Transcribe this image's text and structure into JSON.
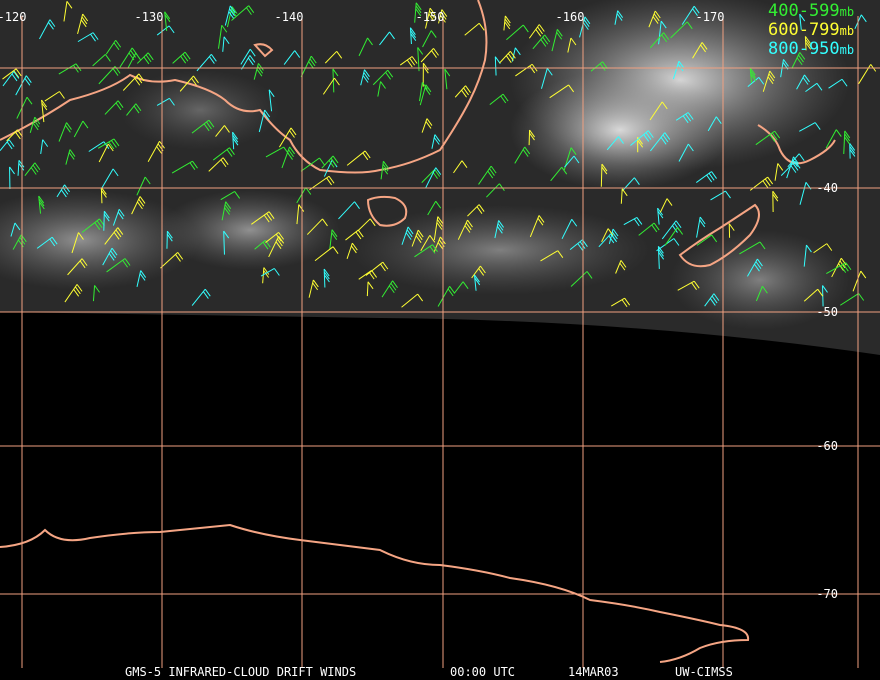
{
  "header": {
    "longitude_labels": [
      "-120",
      "-130",
      "-140",
      "-150",
      "-160",
      "-170"
    ]
  },
  "latitude_labels": [
    "-40",
    "-50",
    "-60",
    "-70"
  ],
  "legend": [
    {
      "range": "400-599",
      "unit": "mb",
      "color": "#33ee33"
    },
    {
      "range": "600-799",
      "unit": "mb",
      "color": "#ffff33"
    },
    {
      "range": "800-950",
      "unit": "mb",
      "color": "#33ffff"
    }
  ],
  "footer": {
    "product": "GMS-5 INFRARED-CLOUD DRIFT WINDS",
    "time": "00:00 UTC",
    "date": "14MAR03",
    "source": "UW-CIMSS"
  }
}
